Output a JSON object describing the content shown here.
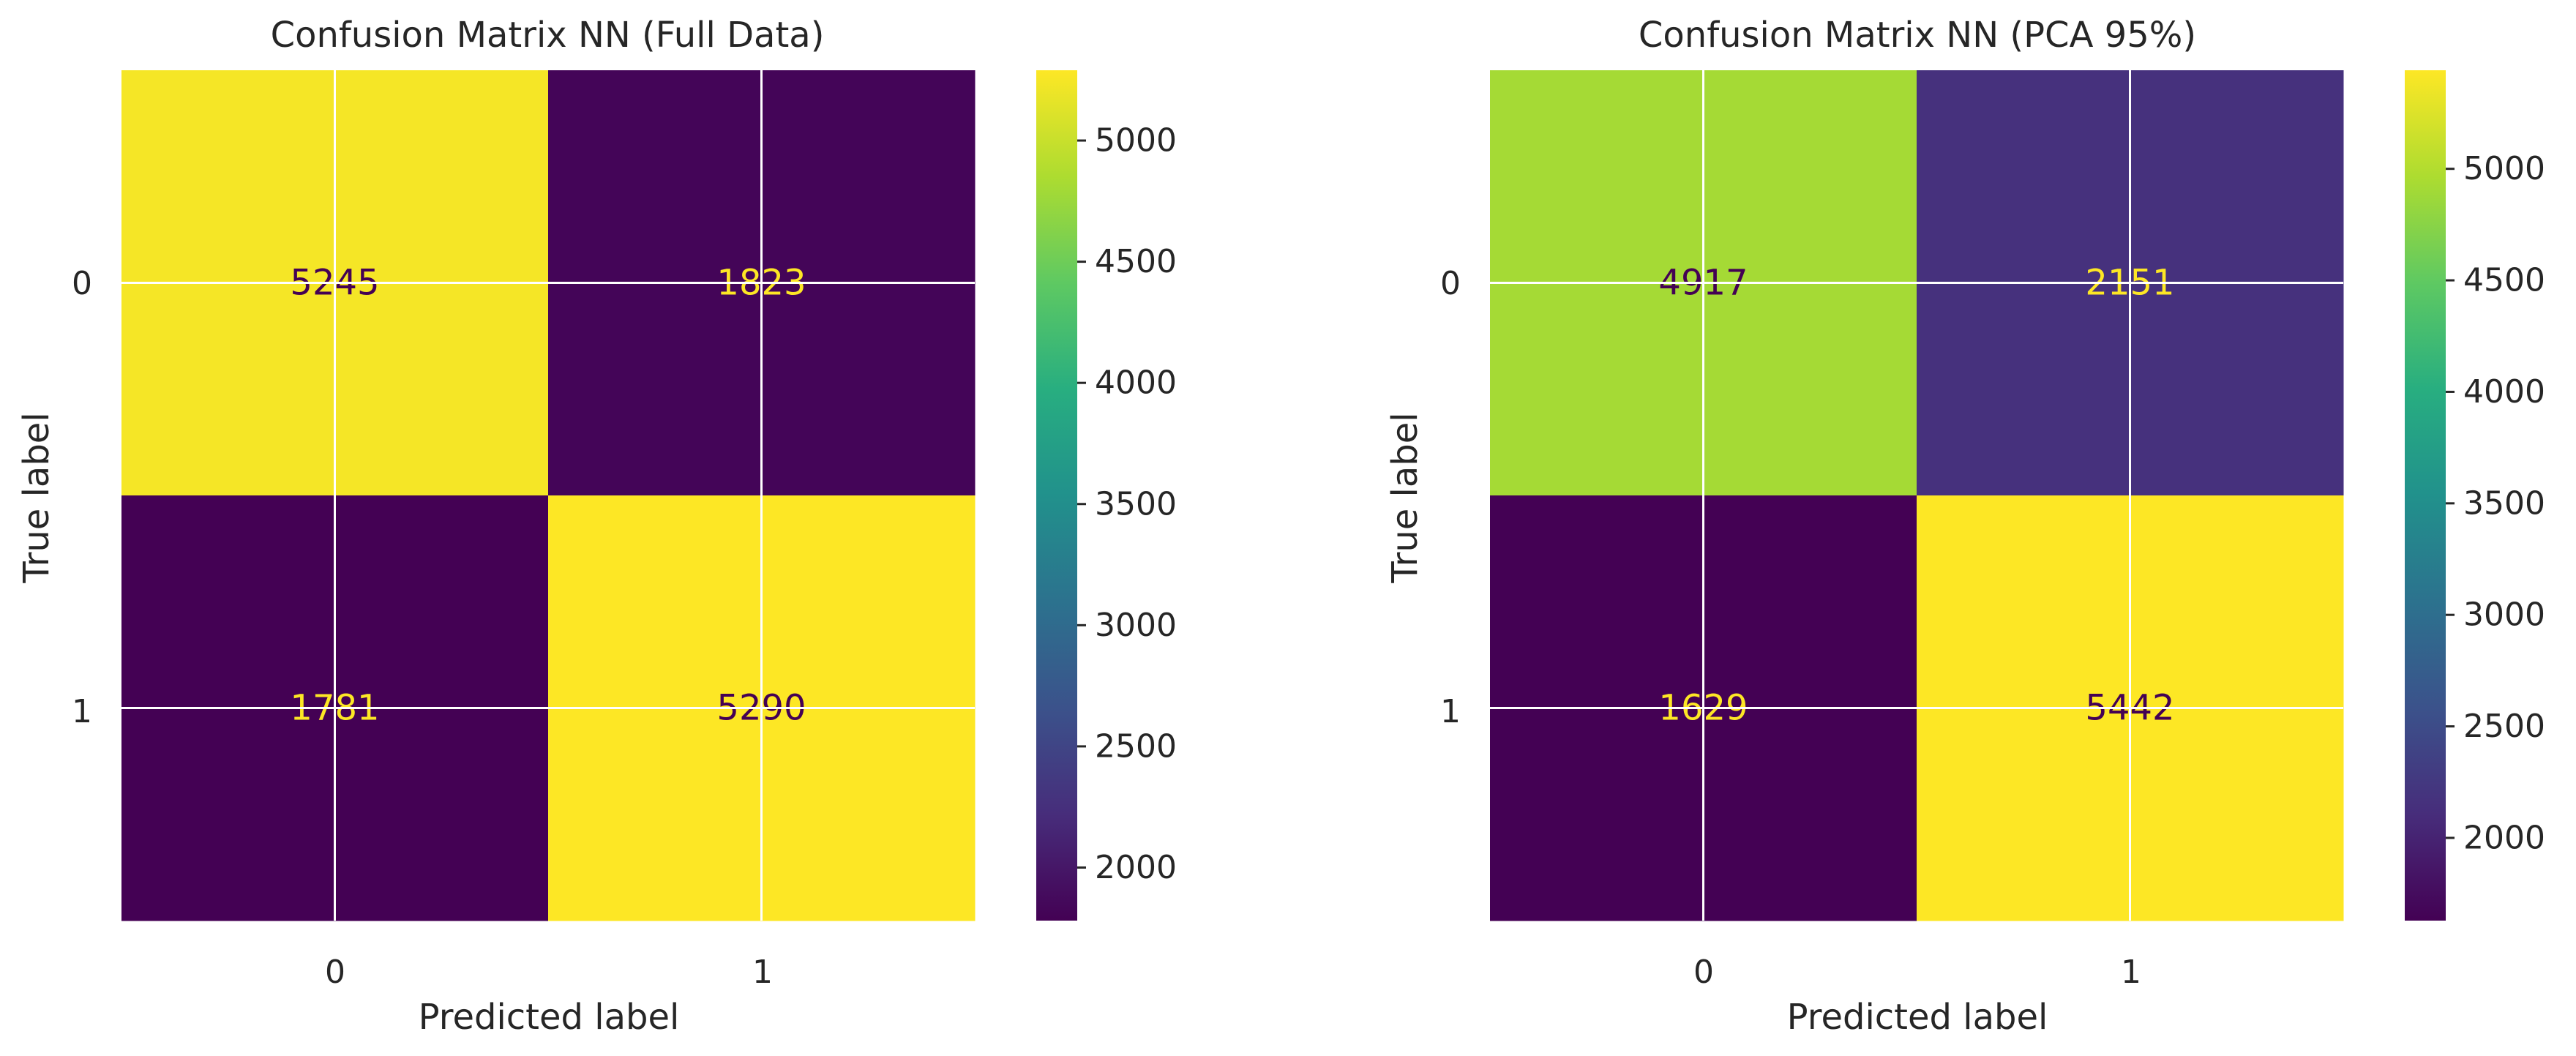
{
  "chart_data": [
    {
      "type": "heatmap",
      "title": "Confusion Matrix NN (Full Data)",
      "xlabel": "Predicted label",
      "ylabel": "True label",
      "x_tick_labels": [
        "0",
        "1"
      ],
      "y_tick_labels": [
        "0",
        "1"
      ],
      "matrix": [
        [
          5245,
          1823
        ],
        [
          1781,
          5290
        ]
      ],
      "cells": [
        {
          "row": 0,
          "col": 0,
          "value": 5245
        },
        {
          "row": 0,
          "col": 1,
          "value": 1823
        },
        {
          "row": 1,
          "col": 0,
          "value": 1781
        },
        {
          "row": 1,
          "col": 1,
          "value": 5290
        }
      ],
      "colormap": "viridis",
      "colorbar": {
        "vmin": 1781,
        "vmax": 5290,
        "ticks": [
          2000,
          2500,
          3000,
          3500,
          4000,
          4500,
          5000
        ],
        "tick_labels": [
          "2000",
          "2500",
          "3000",
          "3500",
          "4000",
          "4500",
          "5000"
        ]
      },
      "grid": true
    },
    {
      "type": "heatmap",
      "title": "Confusion Matrix NN (PCA 95%)",
      "xlabel": "Predicted label",
      "ylabel": "True label",
      "x_tick_labels": [
        "0",
        "1"
      ],
      "y_tick_labels": [
        "0",
        "1"
      ],
      "matrix": [
        [
          4917,
          2151
        ],
        [
          1629,
          5442
        ]
      ],
      "cells": [
        {
          "row": 0,
          "col": 0,
          "value": 4917
        },
        {
          "row": 0,
          "col": 1,
          "value": 2151
        },
        {
          "row": 1,
          "col": 0,
          "value": 1629
        },
        {
          "row": 1,
          "col": 1,
          "value": 5442
        }
      ],
      "colormap": "viridis",
      "colorbar": {
        "vmin": 1629,
        "vmax": 5442,
        "ticks": [
          2000,
          2500,
          3000,
          3500,
          4000,
          4500,
          5000
        ],
        "tick_labels": [
          "2000",
          "2500",
          "3000",
          "3500",
          "4000",
          "4500",
          "5000"
        ]
      },
      "grid": true
    }
  ]
}
